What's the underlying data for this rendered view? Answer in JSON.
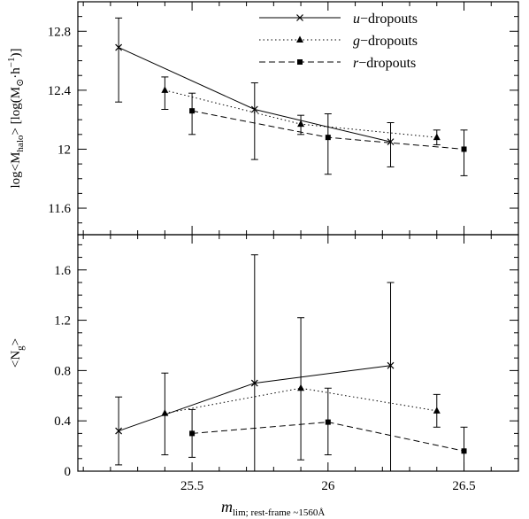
{
  "chart_data": [
    {
      "type": "line",
      "panel": "top",
      "ylabel": "log<Mhalo> [log(M☉·h⁻¹)]",
      "xlabel": "",
      "xlim": [
        25.08,
        26.7
      ],
      "ylim": [
        11.42,
        13.0
      ],
      "yticks": [
        11.6,
        12,
        12.4,
        12.8
      ],
      "ytick_labels": [
        "11.6",
        "12",
        "12.4",
        "12.8"
      ],
      "grid": false,
      "legend_position": "top-right",
      "series": [
        {
          "name": "u−dropouts",
          "marker": "x",
          "dash": "solid",
          "points": [
            {
              "x": 25.23,
              "y": 12.69,
              "lo": 12.32,
              "hi": 12.89
            },
            {
              "x": 25.73,
              "y": 12.27,
              "lo": 11.93,
              "hi": 12.45
            },
            {
              "x": 26.23,
              "y": 12.05,
              "lo": 11.88,
              "hi": 12.18
            }
          ]
        },
        {
          "name": "g−dropouts",
          "marker": "triangle",
          "dash": "dotted",
          "points": [
            {
              "x": 25.4,
              "y": 12.4,
              "lo": 12.27,
              "hi": 12.49
            },
            {
              "x": 25.9,
              "y": 12.17,
              "lo": 12.1,
              "hi": 12.23
            },
            {
              "x": 26.4,
              "y": 12.08,
              "lo": 12.03,
              "hi": 12.13
            }
          ]
        },
        {
          "name": "r−dropouts",
          "marker": "square",
          "dash": "dashed",
          "points": [
            {
              "x": 25.5,
              "y": 12.26,
              "lo": 12.1,
              "hi": 12.38
            },
            {
              "x": 26.0,
              "y": 12.08,
              "lo": 11.83,
              "hi": 12.24
            },
            {
              "x": 26.5,
              "y": 12.0,
              "lo": 11.82,
              "hi": 12.13
            }
          ]
        }
      ]
    },
    {
      "type": "line",
      "panel": "bottom",
      "ylabel": "<Ng>",
      "xlabel": "mlim; rest-frame ~1560Å",
      "xlim": [
        25.08,
        26.7
      ],
      "ylim": [
        0,
        1.88
      ],
      "yticks": [
        0,
        0.4,
        0.8,
        1.2,
        1.6
      ],
      "ytick_labels": [
        "0",
        "0.4",
        "0.8",
        "1.2",
        "1.6"
      ],
      "xticks": [
        25.5,
        26,
        26.5
      ],
      "xtick_labels": [
        "25.5",
        "26",
        "26.5"
      ],
      "grid": false,
      "series": [
        {
          "name": "u−dropouts",
          "marker": "x",
          "dash": "solid",
          "points": [
            {
              "x": 25.23,
              "y": 0.32,
              "lo": 0.05,
              "hi": 0.59
            },
            {
              "x": 25.73,
              "y": 0.7,
              "lo": 0.0,
              "hi": 1.72
            },
            {
              "x": 26.23,
              "y": 0.84,
              "lo": 0.0,
              "hi": 1.5
            }
          ]
        },
        {
          "name": "g−dropouts",
          "marker": "triangle",
          "dash": "dotted",
          "points": [
            {
              "x": 25.4,
              "y": 0.46,
              "lo": 0.13,
              "hi": 0.78
            },
            {
              "x": 25.9,
              "y": 0.66,
              "lo": 0.09,
              "hi": 1.22
            },
            {
              "x": 26.4,
              "y": 0.48,
              "lo": 0.35,
              "hi": 0.61
            }
          ]
        },
        {
          "name": "r−dropouts",
          "marker": "square",
          "dash": "dashed",
          "points": [
            {
              "x": 25.5,
              "y": 0.3,
              "lo": 0.11,
              "hi": 0.49
            },
            {
              "x": 26.0,
              "y": 0.39,
              "lo": 0.13,
              "hi": 0.66
            },
            {
              "x": 26.5,
              "y": 0.16,
              "lo": 0.0,
              "hi": 0.35
            }
          ]
        }
      ]
    }
  ]
}
